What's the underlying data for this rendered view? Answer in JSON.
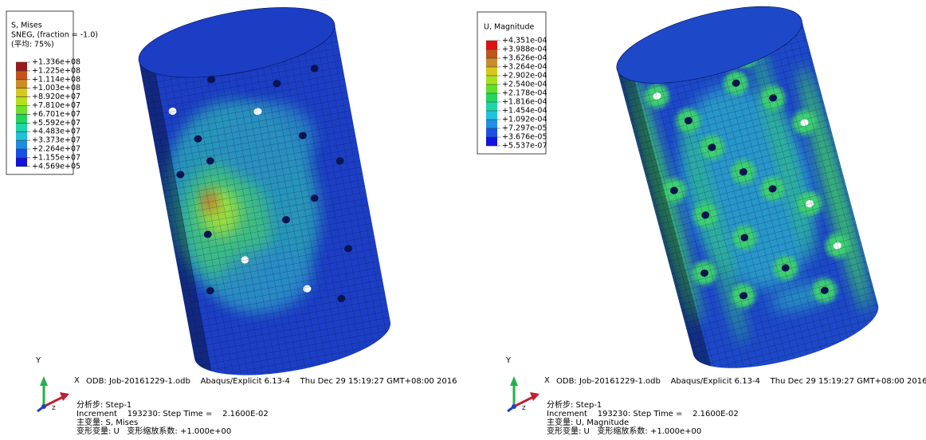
{
  "panels": [
    {
      "legend": {
        "title": [
          "S, Mises",
          "SNEG, (fraction = -1.0)",
          "(平均: 75%)"
        ],
        "labels": [
          "+1.336e+08",
          "+1.225e+08",
          "+1.114e+08",
          "+1.003e+08",
          "+8.920e+07",
          "+7.810e+07",
          "+6.701e+07",
          "+5.592e+07",
          "+4.483e+07",
          "+3.373e+07",
          "+2.264e+07",
          "+1.155e+07",
          "+4.569e+05"
        ]
      },
      "axes": {
        "y": "Y",
        "x": "X",
        "z": "Z"
      },
      "info": {
        "odb": "ODB: Job-20161229-1.odb    Abaqus/Explicit 6.13-4    Thu Dec 29 15:19:27 GMT+08:00 2016",
        "step": "分析步: Step-1",
        "increment": "Increment    193230: Step Time =    2.1600E-02",
        "primary": "主变量: S, Mises",
        "deformed": "变形变量: U   变形缩放系数: +1.000e+00"
      }
    },
    {
      "legend": {
        "title": [
          "U, Magnitude"
        ],
        "labels": [
          "+4.351e-04",
          "+3.988e-04",
          "+3.626e-04",
          "+3.264e-04",
          "+2.902e-04",
          "+2.540e-04",
          "+2.178e-04",
          "+1.816e-04",
          "+1.454e-04",
          "+1.092e-04",
          "+7.297e-05",
          "+3.676e-05",
          "+5.537e-07"
        ]
      },
      "axes": {
        "y": "Y",
        "x": "X",
        "z": "Z"
      },
      "info": {
        "odb": "ODB: Job-20161229-1.odb    Abaqus/Explicit 6.13-4    Thu Dec 29 15:19:27 GMT+08:00 2016",
        "step": "分析步: Step-1",
        "increment": "Increment    193230: Step Time =    2.1600E-02",
        "primary": "主变量: U, Magnitude",
        "deformed": "变形变量: U   变形缩放系数: +1.000e+00"
      }
    }
  ]
}
